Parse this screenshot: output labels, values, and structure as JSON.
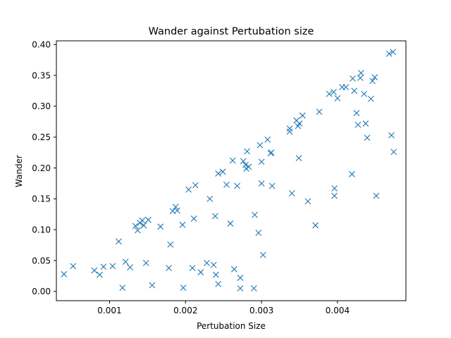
{
  "chart_data": {
    "type": "scatter",
    "title": "Wander against Pertubation size",
    "xlabel": "Pertubation Size",
    "ylabel": "Wander",
    "xlim": [
      0.0003,
      0.0049
    ],
    "ylim": [
      -0.015,
      0.406
    ],
    "xticks": [
      0.001,
      0.002,
      0.003,
      0.004
    ],
    "xtick_labels": [
      "0.001",
      "0.002",
      "0.003",
      "0.004"
    ],
    "yticks": [
      0.0,
      0.05,
      0.1,
      0.15,
      0.2,
      0.25,
      0.3,
      0.35,
      0.4
    ],
    "ytick_labels": [
      "0.00",
      "0.05",
      "0.10",
      "0.15",
      "0.20",
      "0.25",
      "0.30",
      "0.35",
      "0.40"
    ],
    "grid": false,
    "marker": "x",
    "color": "#1f77b4",
    "series": [
      {
        "points": [
          [
            0.0004,
            0.028
          ],
          [
            0.00052,
            0.041
          ],
          [
            0.0008,
            0.034
          ],
          [
            0.00087,
            0.027
          ],
          [
            0.00092,
            0.04
          ],
          [
            0.00104,
            0.041
          ],
          [
            0.00112,
            0.081
          ],
          [
            0.00117,
            0.006
          ],
          [
            0.00121,
            0.048
          ],
          [
            0.00127,
            0.039
          ],
          [
            0.00134,
            0.106
          ],
          [
            0.00137,
            0.099
          ],
          [
            0.0014,
            0.111
          ],
          [
            0.00143,
            0.115
          ],
          [
            0.00145,
            0.107
          ],
          [
            0.00148,
            0.046
          ],
          [
            0.00151,
            0.116
          ],
          [
            0.00156,
            0.01
          ],
          [
            0.00167,
            0.105
          ],
          [
            0.00178,
            0.038
          ],
          [
            0.0018,
            0.076
          ],
          [
            0.00183,
            0.13
          ],
          [
            0.00187,
            0.137
          ],
          [
            0.00189,
            0.131
          ],
          [
            0.00196,
            0.108
          ],
          [
            0.00197,
            0.006
          ],
          [
            0.00204,
            0.165
          ],
          [
            0.00209,
            0.038
          ],
          [
            0.00211,
            0.118
          ],
          [
            0.00213,
            0.172
          ],
          [
            0.0022,
            0.031
          ],
          [
            0.00228,
            0.046
          ],
          [
            0.00232,
            0.15
          ],
          [
            0.00237,
            0.043
          ],
          [
            0.00239,
            0.122
          ],
          [
            0.0024,
            0.027
          ],
          [
            0.00243,
            0.012
          ],
          [
            0.00243,
            0.191
          ],
          [
            0.00249,
            0.194
          ],
          [
            0.00254,
            0.173
          ],
          [
            0.00259,
            0.11
          ],
          [
            0.00262,
            0.212
          ],
          [
            0.00264,
            0.036
          ],
          [
            0.00268,
            0.171
          ],
          [
            0.00272,
            0.022
          ],
          [
            0.00272,
            0.005
          ],
          [
            0.00276,
            0.211
          ],
          [
            0.00279,
            0.205
          ],
          [
            0.0028,
            0.199
          ],
          [
            0.00281,
            0.227
          ],
          [
            0.00283,
            0.202
          ],
          [
            0.0029,
            0.005
          ],
          [
            0.00291,
            0.124
          ],
          [
            0.00296,
            0.095
          ],
          [
            0.00298,
            0.237
          ],
          [
            0.003,
            0.21
          ],
          [
            0.003,
            0.175
          ],
          [
            0.00302,
            0.059
          ],
          [
            0.00308,
            0.246
          ],
          [
            0.00312,
            0.224
          ],
          [
            0.00313,
            0.225
          ],
          [
            0.00314,
            0.171
          ],
          [
            0.00337,
            0.264
          ],
          [
            0.00337,
            0.259
          ],
          [
            0.0034,
            0.159
          ],
          [
            0.00346,
            0.277
          ],
          [
            0.00348,
            0.268
          ],
          [
            0.0035,
            0.272
          ],
          [
            0.00349,
            0.216
          ],
          [
            0.00354,
            0.285
          ],
          [
            0.00361,
            0.146
          ],
          [
            0.00371,
            0.107
          ],
          [
            0.00376,
            0.291
          ],
          [
            0.00389,
            0.32
          ],
          [
            0.00395,
            0.323
          ],
          [
            0.00396,
            0.167
          ],
          [
            0.00396,
            0.155
          ],
          [
            0.004,
            0.313
          ],
          [
            0.00406,
            0.331
          ],
          [
            0.00411,
            0.331
          ],
          [
            0.00419,
            0.19
          ],
          [
            0.0042,
            0.345
          ],
          [
            0.00422,
            0.325
          ],
          [
            0.00425,
            0.289
          ],
          [
            0.00427,
            0.27
          ],
          [
            0.0043,
            0.346
          ],
          [
            0.00431,
            0.354
          ],
          [
            0.00435,
            0.32
          ],
          [
            0.00437,
            0.272
          ],
          [
            0.00439,
            0.249
          ],
          [
            0.00444,
            0.312
          ],
          [
            0.00446,
            0.341
          ],
          [
            0.00449,
            0.347
          ],
          [
            0.00451,
            0.155
          ],
          [
            0.00468,
            0.385
          ],
          [
            0.00471,
            0.253
          ],
          [
            0.00473,
            0.388
          ],
          [
            0.00474,
            0.226
          ]
        ]
      }
    ]
  }
}
